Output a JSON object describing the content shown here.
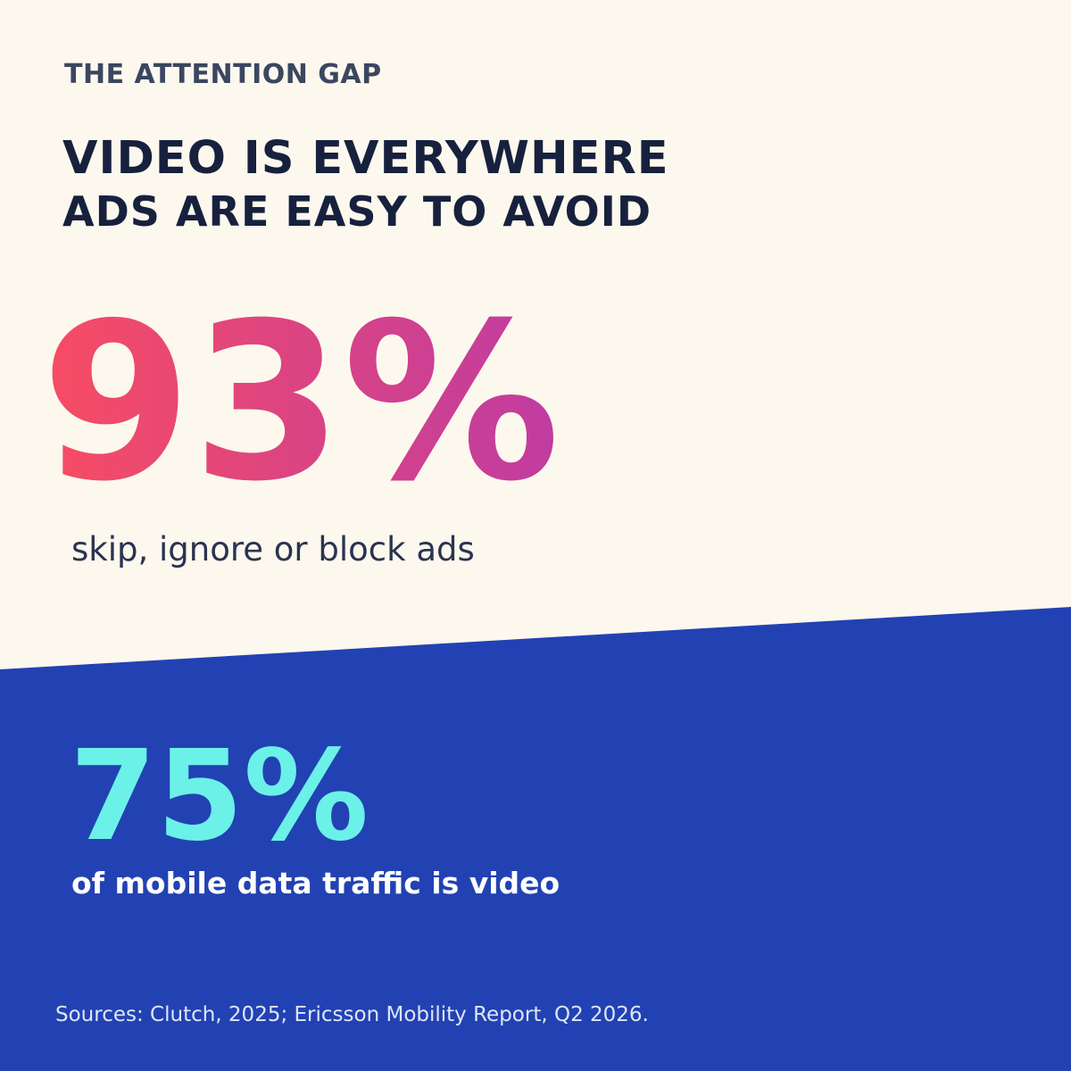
{
  "eyebrow": "THE ATTENTION GAP",
  "headline": {
    "line1": "VIDEO IS EVERYWHERE",
    "line2": "ADS ARE EASY TO AVOID"
  },
  "stats": [
    {
      "value": "93%",
      "caption": "skip, ignore or block ads"
    },
    {
      "value": "75%",
      "caption": "of mobile data traffic is video"
    }
  ],
  "sources": "Sources: Clutch, 2025; Ericsson Mobility Report, Q2 2026."
}
